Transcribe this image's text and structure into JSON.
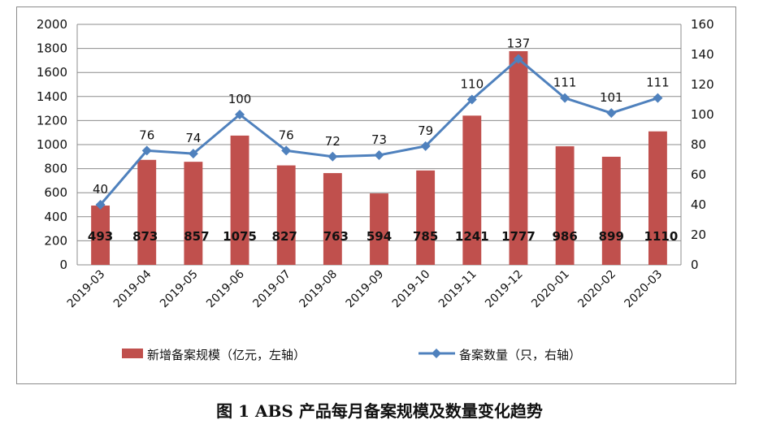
{
  "chart_data": {
    "type": "bar+line",
    "categories": [
      "2019-03",
      "2019-04",
      "2019-05",
      "2019-06",
      "2019-07",
      "2019-08",
      "2019-09",
      "2019-10",
      "2019-11",
      "2019-12",
      "2020-01",
      "2020-02",
      "2020-03"
    ],
    "series": [
      {
        "name": "新增备案规模（亿元，左轴）",
        "type": "bar",
        "axis": "left",
        "color": "#c0504d",
        "values": [
          493,
          873,
          857,
          1075,
          827,
          763,
          594,
          785,
          1241,
          1777,
          986,
          899,
          1110
        ]
      },
      {
        "name": "备案数量（只，右轴）",
        "type": "line",
        "axis": "right",
        "color": "#4f81bd",
        "values": [
          40,
          76,
          74,
          100,
          76,
          72,
          73,
          79,
          110,
          137,
          111,
          101,
          111
        ]
      }
    ],
    "ylim_left": [
      0,
      2000
    ],
    "yticks_left": [
      "0",
      "200",
      "400",
      "600",
      "800",
      "1000",
      "1200",
      "1400",
      "1600",
      "1800",
      "2000"
    ],
    "ylim_right": [
      0,
      160
    ],
    "yticks_right": [
      "0",
      "20",
      "40",
      "60",
      "80",
      "100",
      "120",
      "140",
      "160"
    ],
    "grid": true,
    "legend_position": "bottom"
  },
  "caption": "图 1 ABS 产品每月备案规模及数量变化趋势"
}
